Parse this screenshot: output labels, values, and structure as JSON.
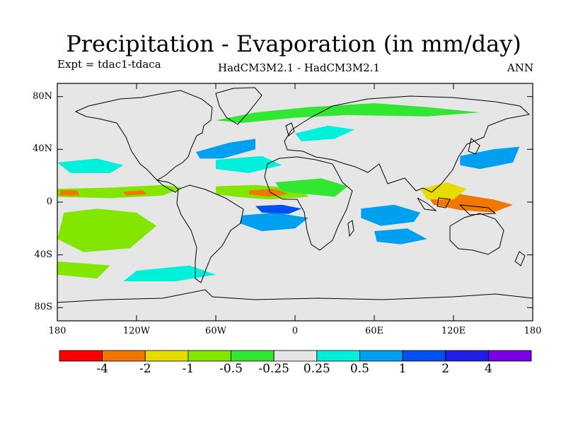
{
  "title": "Precipitation - Evaporation (in mm/day)",
  "experiment": "Expt = tdac1-tdaca",
  "model": "HadCM3M2.1 - HadCM3M2.1",
  "season": "ANN",
  "map": {
    "projection": "cylindrical-equidistant",
    "lon_range": [
      -180,
      180
    ],
    "lat_range": [
      -90,
      90
    ],
    "background_color": "#e6e6e6",
    "lat_ticks": [
      {
        "value": 80,
        "label": "80N"
      },
      {
        "value": 40,
        "label": "40N"
      },
      {
        "value": 0,
        "label": "0"
      },
      {
        "value": -40,
        "label": "40S"
      },
      {
        "value": -80,
        "label": "80S"
      }
    ],
    "lon_ticks": [
      {
        "value": -180,
        "label": "180"
      },
      {
        "value": -120,
        "label": "120W"
      },
      {
        "value": -60,
        "label": "60W"
      },
      {
        "value": 0,
        "label": "0"
      },
      {
        "value": 60,
        "label": "60E"
      },
      {
        "value": 120,
        "label": "120E"
      },
      {
        "value": 180,
        "label": "180"
      }
    ],
    "regions": [
      {
        "name": "pacific-north-band",
        "level": "green-light",
        "pts": [
          [
            -180,
            10
          ],
          [
            -140,
            11
          ],
          [
            -100,
            13
          ],
          [
            -85,
            11
          ],
          [
            -100,
            5
          ],
          [
            -140,
            3
          ],
          [
            -180,
            4
          ]
        ]
      },
      {
        "name": "atlantic-itcz",
        "level": "green-light",
        "pts": [
          [
            -60,
            12
          ],
          [
            -30,
            13
          ],
          [
            5,
            10
          ],
          [
            10,
            4
          ],
          [
            -20,
            2
          ],
          [
            -45,
            4
          ],
          [
            -60,
            6
          ]
        ]
      },
      {
        "name": "atlantic-orange",
        "level": "orange",
        "pts": [
          [
            -35,
            9
          ],
          [
            -15,
            10
          ],
          [
            -5,
            6
          ],
          [
            -20,
            4
          ],
          [
            -35,
            6
          ]
        ]
      },
      {
        "name": "pacific-orange-1",
        "level": "orange",
        "pts": [
          [
            -178,
            9
          ],
          [
            -165,
            9
          ],
          [
            -163,
            5
          ],
          [
            -178,
            5
          ]
        ]
      },
      {
        "name": "pacific-orange-2",
        "level": "orange",
        "pts": [
          [
            -130,
            8
          ],
          [
            -115,
            9
          ],
          [
            -112,
            6
          ],
          [
            -128,
            5
          ]
        ]
      },
      {
        "name": "africa-green",
        "level": "green",
        "pts": [
          [
            -15,
            15
          ],
          [
            20,
            18
          ],
          [
            40,
            12
          ],
          [
            30,
            4
          ],
          [
            10,
            6
          ],
          [
            -10,
            8
          ]
        ]
      },
      {
        "name": "indian-blue-1",
        "level": "blue",
        "pts": [
          [
            50,
            -5
          ],
          [
            75,
            -2
          ],
          [
            95,
            -8
          ],
          [
            90,
            -15
          ],
          [
            65,
            -18
          ],
          [
            50,
            -12
          ]
        ]
      },
      {
        "name": "indian-blue-2",
        "level": "blue",
        "pts": [
          [
            60,
            -22
          ],
          [
            85,
            -20
          ],
          [
            100,
            -28
          ],
          [
            80,
            -32
          ],
          [
            62,
            -30
          ]
        ]
      },
      {
        "name": "maritime-orange",
        "level": "orange",
        "pts": [
          [
            100,
            5
          ],
          [
            125,
            6
          ],
          [
            150,
            2
          ],
          [
            165,
            -2
          ],
          [
            150,
            -8
          ],
          [
            125,
            -6
          ],
          [
            105,
            -2
          ]
        ]
      },
      {
        "name": "maritime-yellow",
        "level": "yellow",
        "pts": [
          [
            95,
            10
          ],
          [
            115,
            15
          ],
          [
            130,
            10
          ],
          [
            120,
            2
          ],
          [
            100,
            2
          ]
        ]
      },
      {
        "name": "south-pacific-blue",
        "level": "blue",
        "pts": [
          [
            -165,
            -12
          ],
          [
            -135,
            -10
          ],
          [
            -115,
            -18
          ],
          [
            -140,
            -32
          ],
          [
            -165,
            -28
          ]
        ]
      },
      {
        "name": "south-pacific-green",
        "level": "green-light",
        "pts": [
          [
            -175,
            -8
          ],
          [
            -150,
            -5
          ],
          [
            -120,
            -8
          ],
          [
            -105,
            -18
          ],
          [
            -125,
            -35
          ],
          [
            -160,
            -38
          ],
          [
            -180,
            -28
          ]
        ]
      },
      {
        "name": "south-atlantic-blue",
        "level": "blue",
        "pts": [
          [
            -40,
            -10
          ],
          [
            -15,
            -8
          ],
          [
            10,
            -12
          ],
          [
            0,
            -20
          ],
          [
            -25,
            -22
          ],
          [
            -42,
            -16
          ]
        ]
      },
      {
        "name": "tropical-atlantic-dark",
        "level": "blue-dark",
        "pts": [
          [
            -30,
            -3
          ],
          [
            -10,
            -2
          ],
          [
            5,
            -5
          ],
          [
            -5,
            -9
          ],
          [
            -25,
            -8
          ]
        ]
      },
      {
        "name": "north-pacific-cyan",
        "level": "cyan",
        "pts": [
          [
            -180,
            30
          ],
          [
            -150,
            33
          ],
          [
            -130,
            28
          ],
          [
            -140,
            22
          ],
          [
            -170,
            22
          ]
        ]
      },
      {
        "name": "nw-pacific-blue",
        "level": "blue",
        "pts": [
          [
            125,
            35
          ],
          [
            150,
            40
          ],
          [
            170,
            42
          ],
          [
            165,
            30
          ],
          [
            140,
            25
          ],
          [
            125,
            28
          ]
        ]
      },
      {
        "name": "north-atlantic-blue",
        "level": "blue",
        "pts": [
          [
            -75,
            38
          ],
          [
            -50,
            45
          ],
          [
            -30,
            48
          ],
          [
            -30,
            40
          ],
          [
            -55,
            33
          ],
          [
            -72,
            33
          ]
        ]
      },
      {
        "name": "north-atlantic-cyan",
        "level": "cyan",
        "pts": [
          [
            -60,
            32
          ],
          [
            -25,
            35
          ],
          [
            -10,
            28
          ],
          [
            -35,
            22
          ],
          [
            -60,
            25
          ]
        ]
      },
      {
        "name": "arctic-green",
        "level": "green",
        "pts": [
          [
            -60,
            62
          ],
          [
            -30,
            68
          ],
          [
            10,
            72
          ],
          [
            60,
            75
          ],
          [
            100,
            72
          ],
          [
            140,
            68
          ],
          [
            100,
            65
          ],
          [
            40,
            66
          ],
          [
            0,
            64
          ],
          [
            -40,
            60
          ]
        ]
      },
      {
        "name": "europe-cyan",
        "level": "cyan",
        "pts": [
          [
            0,
            52
          ],
          [
            25,
            58
          ],
          [
            45,
            55
          ],
          [
            30,
            48
          ],
          [
            5,
            46
          ]
        ]
      },
      {
        "name": "antarctic-cyan",
        "level": "cyan",
        "pts": [
          [
            -120,
            -52
          ],
          [
            -80,
            -48
          ],
          [
            -60,
            -55
          ],
          [
            -90,
            -60
          ],
          [
            -130,
            -60
          ]
        ]
      },
      {
        "name": "southern-green",
        "level": "green-light",
        "pts": [
          [
            -180,
            -45
          ],
          [
            -140,
            -48
          ],
          [
            -150,
            -58
          ],
          [
            -180,
            -55
          ]
        ]
      }
    ]
  },
  "colorbar": {
    "colors": [
      "#ff0000",
      "#f07800",
      "#e6dc00",
      "#82e600",
      "#32e632",
      "#e6e6e6",
      "#00f0dc",
      "#00a0f0",
      "#0050f0",
      "#1e1ee6",
      "#7800e6"
    ],
    "labels": [
      "-4",
      "-2",
      "-1",
      "-0.5",
      "-0.25",
      "0.25",
      "0.5",
      "1",
      "2",
      "4"
    ]
  },
  "palette": {
    "orange": "#f07800",
    "yellow": "#e6dc00",
    "green-light": "#82e600",
    "green": "#32e632",
    "cyan": "#00f0dc",
    "blue": "#00a0f0",
    "blue-dark": "#0050f0"
  }
}
